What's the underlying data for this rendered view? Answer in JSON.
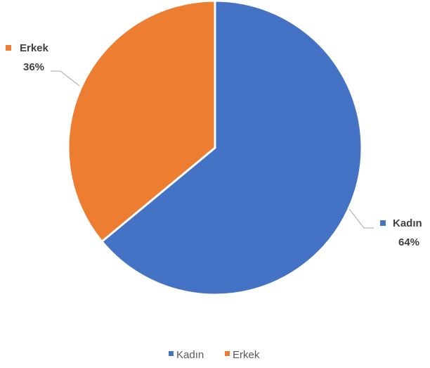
{
  "chart_data": {
    "type": "pie",
    "title": "",
    "slices": [
      {
        "label": "Kadın",
        "value": 64,
        "display": "64%",
        "color": "#4472C4"
      },
      {
        "label": "Erkek",
        "value": 36,
        "display": "36%",
        "color": "#ED7D31"
      }
    ],
    "start_angle_deg": 0,
    "direction": "clockwise",
    "data_labels": "outside-with-leader-lines",
    "legend": {
      "position": "bottom",
      "entries": [
        "Kadın",
        "Erkek"
      ]
    }
  }
}
